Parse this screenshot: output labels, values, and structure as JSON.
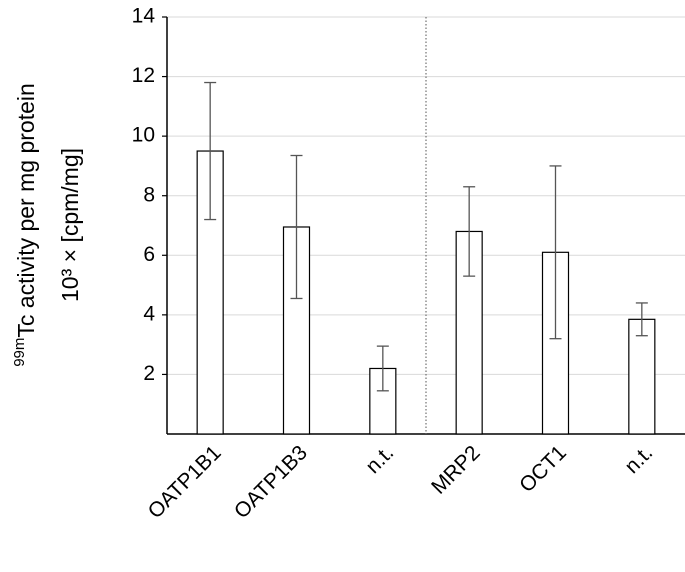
{
  "chart_data": {
    "type": "bar",
    "ylabel_sup": "99m",
    "ylabel": "Tc activity per mg protein",
    "ylabel2": "10³ × [cpm/mg]",
    "categories": [
      "OATP1B1",
      "OATP1B3",
      "n.t.",
      "MRP2",
      "OCT1",
      "n.t."
    ],
    "values": [
      9.5,
      6.95,
      2.2,
      6.8,
      6.1,
      3.85
    ],
    "errors": [
      2.3,
      2.4,
      0.75,
      1.5,
      2.9,
      0.55
    ],
    "color": "#ffffff",
    "ylim": [
      0,
      14
    ],
    "yticks": [
      2,
      4,
      6,
      8,
      10,
      12,
      14
    ],
    "grid": true
  }
}
